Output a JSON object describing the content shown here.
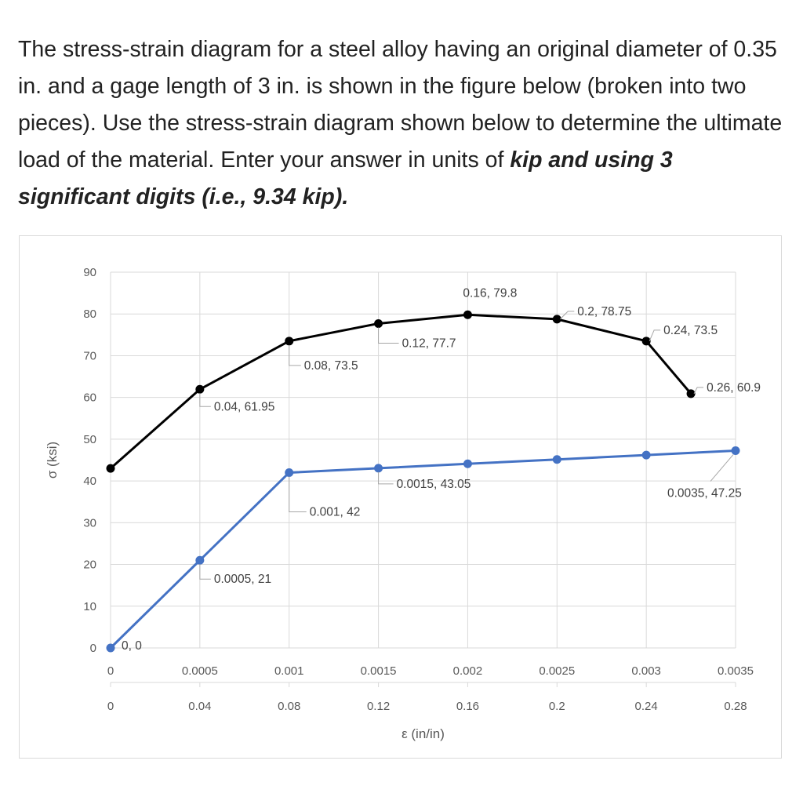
{
  "question": {
    "text_plain": "The stress-strain diagram for a steel alloy having an original diameter of 0.35 in. and a gage length of 3 in. is shown in the figure below (broken into two pieces). Use the stress-strain diagram shown below to determine the ultimate load of the material.  Enter your answer in units of ",
    "text_emph": "kip and using 3 significant digits (i.e., 9.34 kip)."
  },
  "chart_data": {
    "type": "line",
    "ylabel": "σ (ksi)",
    "xlabel": "ε (in/in)",
    "ylim": [
      0,
      90
    ],
    "yticks": [
      "0",
      "10",
      "20",
      "30",
      "40",
      "50",
      "60",
      "70",
      "80",
      "90"
    ],
    "x_primary": {
      "range": [
        0,
        0.0035
      ],
      "ticks": [
        "0",
        "0.0005",
        "0.001",
        "0.0015",
        "0.002",
        "0.0025",
        "0.003",
        "0.0035"
      ]
    },
    "x_secondary": {
      "range": [
        0,
        0.28
      ],
      "ticks": [
        "0",
        "0.04",
        "0.08",
        "0.12",
        "0.16",
        "0.2",
        "0.24",
        "0.28"
      ]
    },
    "grid": true,
    "series": [
      {
        "axis": "primary",
        "color": "#4472c4",
        "points": [
          {
            "x": 0,
            "y": 0,
            "label": "0, 0"
          },
          {
            "x": 0.0005,
            "y": 21,
            "label": "0.0005, 21"
          },
          {
            "x": 0.001,
            "y": 42,
            "label": "0.001, 42"
          },
          {
            "x": 0.0015,
            "y": 43.05,
            "label": "0.0015, 43.05"
          },
          {
            "x": 0.002,
            "y": 44.1,
            "label": ""
          },
          {
            "x": 0.0025,
            "y": 45.15,
            "label": ""
          },
          {
            "x": 0.003,
            "y": 46.2,
            "label": ""
          },
          {
            "x": 0.0035,
            "y": 47.25,
            "label": "0.0035, 47.25"
          }
        ]
      },
      {
        "axis": "secondary",
        "color": "#000000",
        "points": [
          {
            "x": 0,
            "y": 43,
            "label": ""
          },
          {
            "x": 0.04,
            "y": 61.95,
            "label": "0.04, 61.95"
          },
          {
            "x": 0.08,
            "y": 73.5,
            "label": "0.08, 73.5"
          },
          {
            "x": 0.12,
            "y": 77.7,
            "label": "0.12, 77.7"
          },
          {
            "x": 0.16,
            "y": 79.8,
            "label": "0.16, 79.8"
          },
          {
            "x": 0.2,
            "y": 78.75,
            "label": "0.2, 78.75"
          },
          {
            "x": 0.24,
            "y": 73.5,
            "label": "0.24, 73.5"
          },
          {
            "x": 0.26,
            "y": 60.9,
            "label": "0.26, 60.9"
          }
        ]
      }
    ]
  }
}
